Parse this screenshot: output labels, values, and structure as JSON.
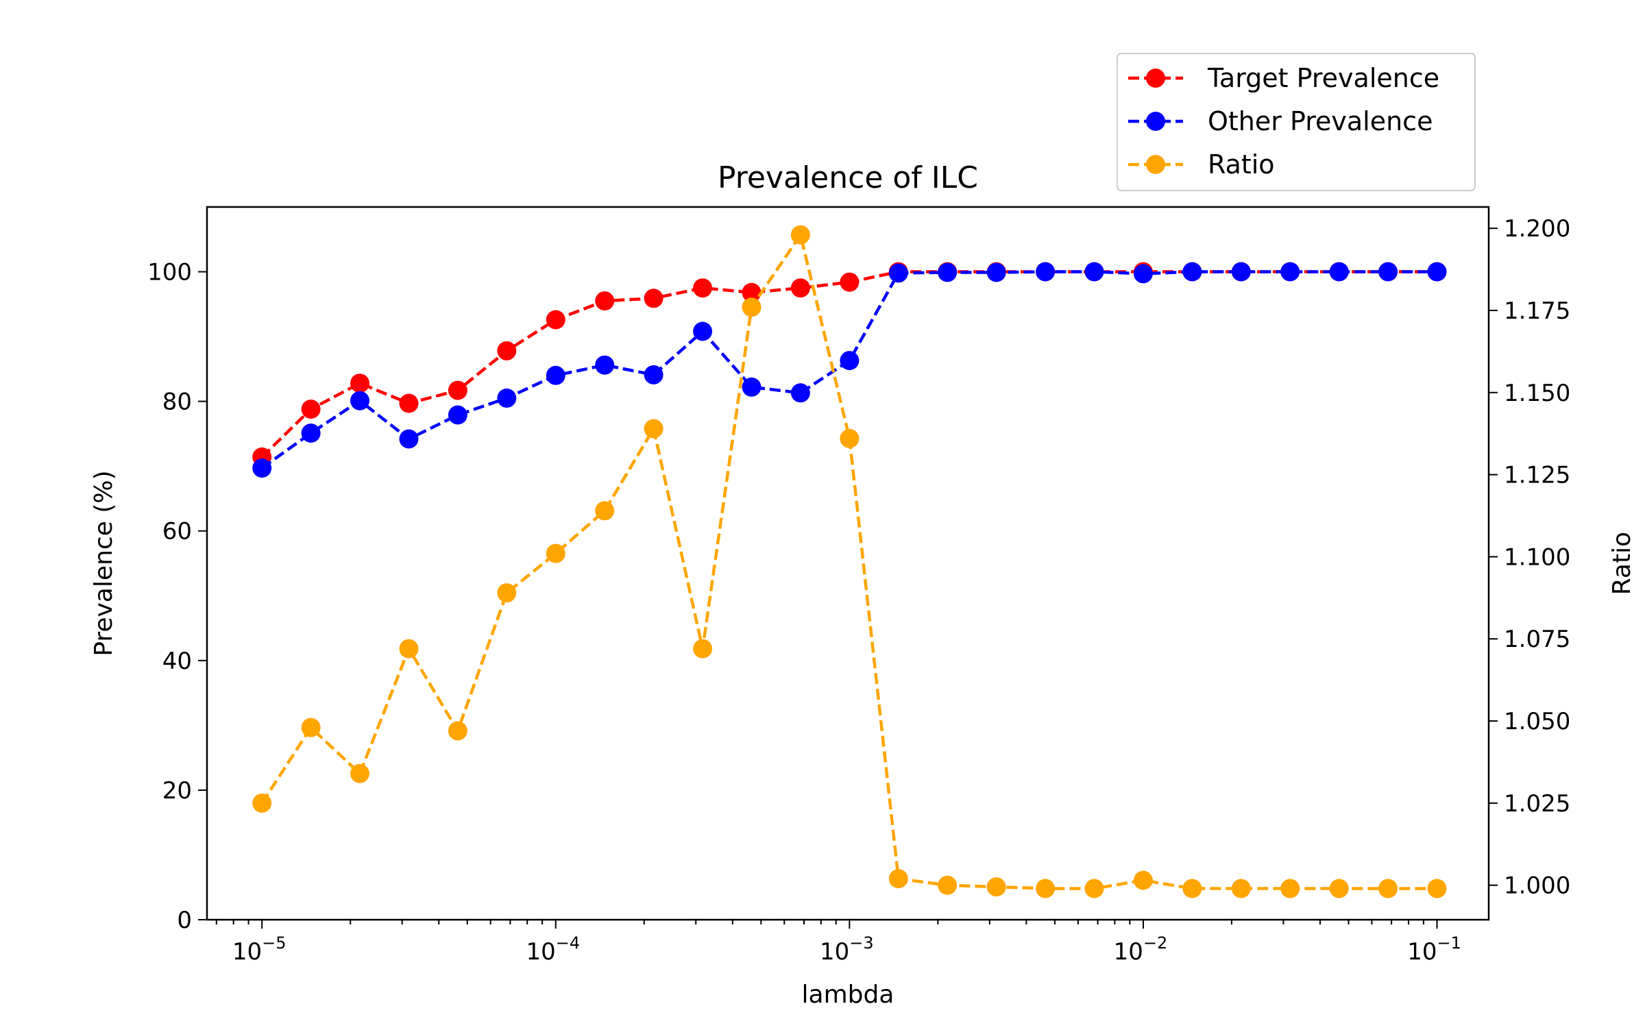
{
  "chart_data": {
    "type": "line",
    "title": "Prevalence of ILC",
    "xlabel": "lambda",
    "ylabel": "Prevalence (%)",
    "y2label": "Ratio",
    "xscale": "log",
    "xlim": [
      6.5e-06,
      0.15
    ],
    "ylim": [
      0,
      110
    ],
    "y2lim": [
      0.9895,
      1.2065
    ],
    "grid": false,
    "legend_position": "top-right, above plot",
    "x": [
      1e-05,
      1.4678e-05,
      2.1544e-05,
      3.1623e-05,
      4.6416e-05,
      6.8129e-05,
      0.0001,
      0.00014678,
      0.00021544,
      0.00031623,
      0.00046416,
      0.00068129,
      0.001,
      0.0014678,
      0.0021544,
      0.0031623,
      0.0046416,
      0.0068129,
      0.01,
      0.014678,
      0.021544,
      0.031623,
      0.046416,
      0.068129,
      0.1
    ],
    "series": [
      {
        "name": "Target Prevalence",
        "axis": "left",
        "color": "#ff0000",
        "values": [
          71.4,
          78.8,
          82.8,
          79.7,
          81.7,
          87.8,
          92.6,
          95.5,
          95.9,
          97.5,
          96.8,
          97.5,
          98.4,
          100,
          100,
          100,
          100,
          100,
          100,
          100,
          100,
          100,
          100,
          100,
          100
        ]
      },
      {
        "name": "Other Prevalence",
        "axis": "left",
        "color": "#0000ff",
        "values": [
          69.7,
          75.1,
          80.1,
          74.2,
          77.9,
          80.5,
          84.0,
          85.6,
          84.1,
          90.8,
          82.2,
          81.3,
          86.3,
          99.8,
          99.9,
          99.9,
          100,
          100,
          99.7,
          100,
          100,
          100,
          100,
          100,
          100
        ]
      },
      {
        "name": "Ratio",
        "axis": "right",
        "color": "#ffa500",
        "values": [
          1.025,
          1.048,
          1.034,
          1.072,
          1.047,
          1.089,
          1.101,
          1.114,
          1.139,
          1.072,
          1.176,
          1.198,
          1.136,
          1.002,
          1.0,
          0.9995,
          0.999,
          0.999,
          1.0015,
          0.999,
          0.999,
          0.999,
          0.999,
          0.999,
          0.999
        ]
      }
    ],
    "x_ticks": [
      {
        "value": 1e-05,
        "exp": "−5"
      },
      {
        "value": 0.0001,
        "exp": "−4"
      },
      {
        "value": 0.001,
        "exp": "−3"
      },
      {
        "value": 0.01,
        "exp": "−2"
      },
      {
        "value": 0.1,
        "exp": "−1"
      }
    ],
    "x_tick_base": "10",
    "y_ticks": [
      "0",
      "20",
      "40",
      "60",
      "80",
      "100"
    ],
    "y2_ticks": [
      "1.000",
      "1.025",
      "1.050",
      "1.075",
      "1.100",
      "1.125",
      "1.150",
      "1.175",
      "1.200"
    ]
  }
}
